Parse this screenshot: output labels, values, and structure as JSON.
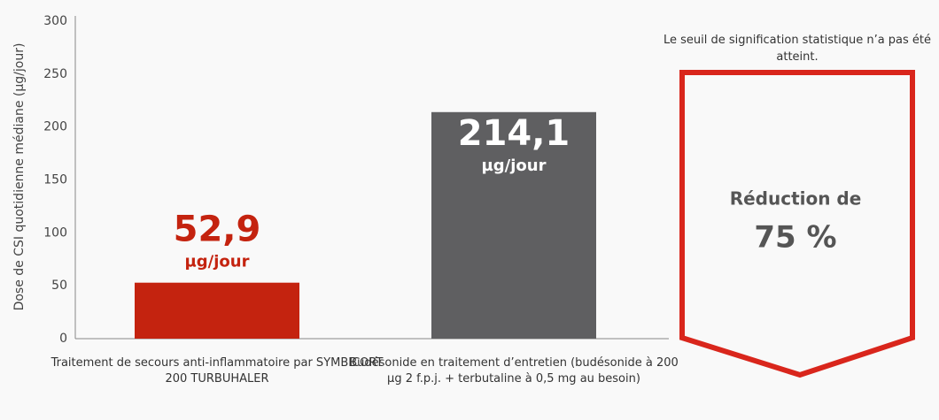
{
  "chart_data": {
    "type": "bar",
    "y_label": "Dose de CSI quotidienne médiane (µg/jour)",
    "categories": [
      "Traitement de secours anti-inflammatoire par SYMBICORT 200 TURBUHALER",
      "Budésonide en traitement d’entretien (budésonide à 200 µg 2 f.p.j. + terbutaline à 0,5 mg au besoin)"
    ],
    "values": [
      52.9,
      214.1
    ],
    "value_labels": [
      "52,9",
      "214,1"
    ],
    "value_unit": "µg/jour",
    "colors": [
      "#c4230f",
      "#5f5f61"
    ],
    "ylim": [
      0,
      300
    ],
    "yticks": [
      0,
      50,
      100,
      150,
      200,
      250,
      300
    ],
    "grid": false,
    "annotation": "Le seuil de signification statistique n’a pas été atteint.",
    "callout": {
      "line1": "Réduction de",
      "line2": "75 %",
      "color": "#d9261c"
    }
  }
}
